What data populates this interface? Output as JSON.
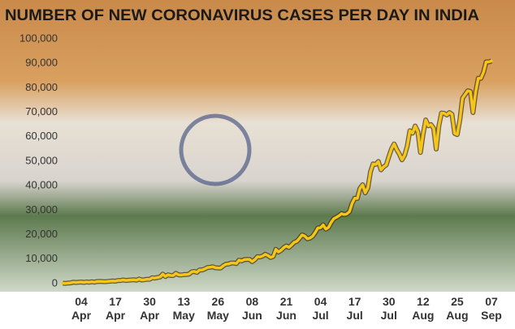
{
  "chart_data": {
    "type": "line",
    "title": "NUMBER OF NEW CORONAVIRUS CASES PER DAY IN INDIA",
    "color": "#f5c518",
    "categories": [
      null,
      null,
      null,
      null,
      null,
      null,
      null,
      "04 Apr",
      null,
      null,
      null,
      null,
      null,
      null,
      null,
      null,
      null,
      null,
      null,
      null,
      "17 Apr",
      null,
      null,
      null,
      null,
      null,
      null,
      null,
      null,
      null,
      null,
      null,
      null,
      "30 Apr",
      null,
      null,
      null,
      null,
      null,
      null,
      null,
      null,
      null,
      null,
      null,
      null,
      "13 May",
      null,
      null,
      null,
      null,
      null,
      null,
      null,
      null,
      null,
      null,
      null,
      null,
      "26 May",
      null,
      null,
      null,
      null,
      null,
      null,
      null,
      null,
      null,
      null,
      null,
      null,
      "08 Jun",
      null,
      null,
      null,
      null,
      null,
      null,
      null,
      null,
      null,
      null,
      null,
      null,
      "21 Jun",
      null,
      null,
      null,
      null,
      null,
      null,
      null,
      null,
      null,
      null,
      null,
      null,
      "04 Jul",
      null,
      null,
      null,
      null,
      null,
      null,
      null,
      null,
      null,
      null,
      null,
      null,
      "17 Jul",
      null,
      null,
      null,
      null,
      null,
      null,
      null,
      null,
      null,
      null,
      null,
      null,
      "30 Jul",
      null,
      null,
      null,
      null,
      null,
      null,
      null,
      null,
      null,
      null,
      null,
      null,
      "12 Aug",
      null,
      null,
      null,
      null,
      null,
      null,
      null,
      null,
      null,
      null,
      null,
      null,
      "25 Aug",
      null,
      null,
      null,
      null,
      null,
      null,
      null,
      null,
      null,
      null,
      null,
      null,
      "07 Sep"
    ],
    "values": [
      150,
      100,
      230,
      300,
      600,
      450,
      550,
      650,
      500,
      700,
      550,
      750,
      600,
      850,
      900,
      850,
      750,
      900,
      1000,
      1100,
      1000,
      1300,
      1300,
      1500,
      1300,
      1400,
      1500,
      1600,
      1400,
      1900,
      1500,
      1600,
      1800,
      1800,
      2400,
      2300,
      2500,
      2700,
      3900,
      2900,
      3600,
      3300,
      3300,
      4200,
      3600,
      3500,
      3700,
      3700,
      3900,
      4800,
      5000,
      4600,
      5600,
      5600,
      6000,
      6600,
      6700,
      6900,
      6500,
      6400,
      6400,
      7300,
      7900,
      8000,
      8400,
      8400,
      8200,
      9600,
      9300,
      9800,
      9900,
      9900,
      9000,
      9800,
      11000,
      10900,
      11300,
      12000,
      11500,
      10700,
      11100,
      14000,
      12900,
      13600,
      14700,
      15400,
      14800,
      15800,
      16900,
      17300,
      18500,
      19900,
      19400,
      18300,
      18600,
      19400,
      20900,
      22700,
      22800,
      24000,
      22300,
      22900,
      24900,
      26500,
      27100,
      27700,
      28600,
      28200,
      28500,
      29400,
      32700,
      34900,
      34800,
      38900,
      40400,
      37100,
      39200,
      45700,
      48900,
      48700,
      49900,
      46500,
      47700,
      48500,
      52000,
      55100,
      57100,
      54700,
      52900,
      50600,
      52500,
      56300,
      62500,
      61500,
      64400,
      62100,
      53600,
      60900,
      66900,
      64500,
      65000,
      63500,
      55000,
      64500,
      69700,
      69600,
      68900,
      69900,
      69200,
      61400,
      60900,
      67100,
      75800,
      77300,
      78800,
      78500,
      69900,
      78400,
      83900,
      83900,
      86400,
      90600,
      90600,
      91000
    ],
    "ylim": [
      0,
      100000
    ],
    "yticks": [
      0,
      {
        "value": 10000,
        "label": "10,000"
      },
      {
        "value": 20000,
        "label": "20,000"
      },
      {
        "value": 30000,
        "label": "30,000"
      },
      {
        "value": 40000,
        "label": "40,000"
      },
      {
        "value": 50000,
        "label": "50,000"
      },
      {
        "value": 60000,
        "label": "60,000"
      },
      {
        "value": 70000,
        "label": "70,000"
      },
      {
        "value": 80000,
        "label": "80,000"
      },
      {
        "value": 90000,
        "label": "90,000"
      },
      {
        "value": 100000,
        "label": "100,000"
      }
    ],
    "grid": false
  }
}
